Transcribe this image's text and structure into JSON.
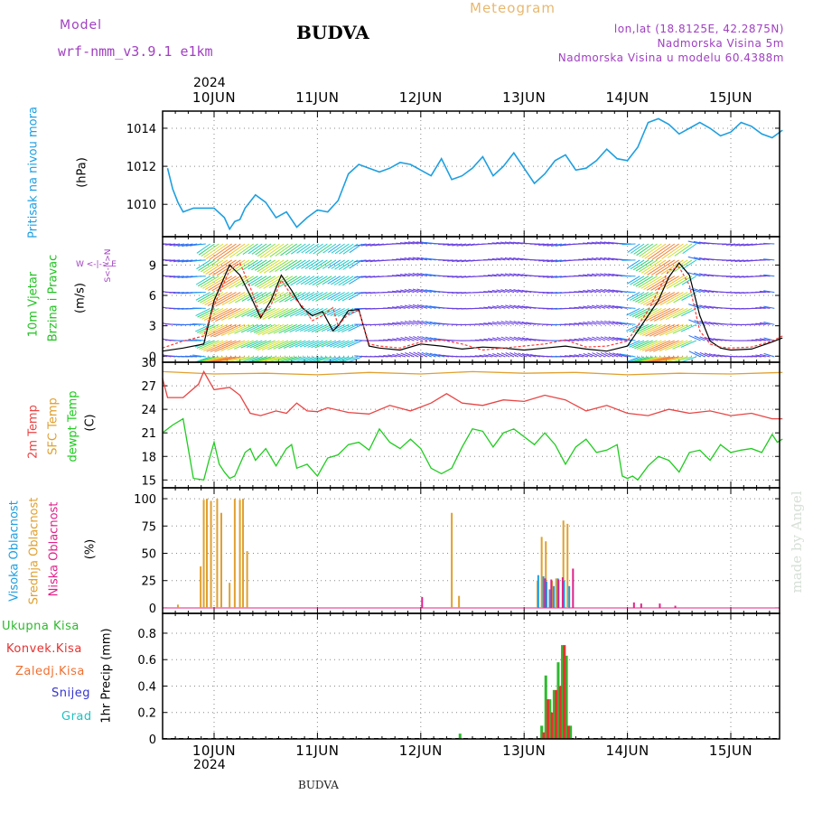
{
  "header": {
    "model_label": "Model",
    "model_name": "wrf-nmm_v3.9.1  e1km",
    "title": "BUDVA",
    "meteogram": "Meteogram",
    "lonlat": "lon,lat (18.8125E, 42.2875N)",
    "altitude": "Nadmorska Visina 5m",
    "model_altitude": "Nadmorska Visina u modelu 60.4388m",
    "year_top": "2024",
    "year_bottom": "2024",
    "footer": "BUDVA",
    "watermark": "made by Angel"
  },
  "colors": {
    "pressure": "#1e9fe0",
    "wind_title": "#1fc21f",
    "wind_gust": "#000000",
    "wind_speed": "#ff3b3b",
    "temp_2m": "#e84545",
    "temp_sfc": "#e0a030",
    "temp_dew": "#1fcc1f",
    "cloud_high": "#1e9fe0",
    "cloud_mid": "#e0a030",
    "cloud_low": "#e0218a",
    "precip_total": "#2fb82f",
    "precip_conv": "#e83030",
    "precip_frozen": "#f07030",
    "precip_snow": "#3535d0",
    "precip_grad": "#20c0c0",
    "header_purple": "#a040c0",
    "meteogram": "#e8b870"
  },
  "panels": {
    "pressure": {
      "label": "Pritisak na nivou mora",
      "unit": "(hPa)"
    },
    "wind": {
      "label1": "10m Vjetar",
      "label2": "Brzina i Pravac",
      "unit": "(m/s)",
      "compass": "W  <-|->  E",
      "compass2": "S<-|->N"
    },
    "temp": {
      "label1": "2m Temp",
      "label2": "SFC Temp",
      "label3": "dewpt Temp",
      "unit": "(C)"
    },
    "cloud": {
      "label1": "Visoka Oblacnost",
      "label2": "Srednja Oblacnost",
      "label3": "Niska Oblacnost",
      "unit": "(%)"
    },
    "precip": {
      "label_total": "Ukupna Kisa",
      "label_conv": "Konvek.Kisa",
      "label_frozen": "Zaledj.Kisa",
      "label_snow": "Snijeg",
      "label_grad": "Grad",
      "unit": "1hr Precip (mm)"
    }
  },
  "chart_data": [
    {
      "type": "line",
      "name": "pressure",
      "x_ticks": [
        "10JUN",
        "11JUN",
        "12JUN",
        "13JUN",
        "14JUN",
        "15JUN"
      ],
      "y_ticks": [
        1010,
        1012,
        1014
      ],
      "ylim": [
        1008.3,
        1014.9
      ],
      "grid": true,
      "series": [
        {
          "key": "pressure",
          "x": [
            -0.45,
            -0.4,
            -0.35,
            -0.3,
            -0.2,
            -0.1,
            0.0,
            0.1,
            0.15,
            0.2,
            0.25,
            0.3,
            0.4,
            0.5,
            0.6,
            0.7,
            0.8,
            0.9,
            1.0,
            1.1,
            1.2,
            1.3,
            1.4,
            1.5,
            1.6,
            1.7,
            1.8,
            1.9,
            2.0,
            2.1,
            2.2,
            2.3,
            2.4,
            2.5,
            2.6,
            2.7,
            2.8,
            2.9,
            3.0,
            3.1,
            3.2,
            3.3,
            3.4,
            3.5,
            3.6,
            3.7,
            3.8,
            3.9,
            4.0,
            4.1,
            4.2,
            4.3,
            4.4,
            4.5,
            4.6,
            4.7,
            4.8,
            4.9,
            5.0,
            5.1,
            5.2,
            5.3,
            5.4,
            5.5
          ],
          "values": [
            1011.9,
            1010.8,
            1010.1,
            1009.6,
            1009.8,
            1009.8,
            1009.8,
            1009.3,
            1008.7,
            1009.1,
            1009.2,
            1009.8,
            1010.5,
            1010.1,
            1009.3,
            1009.6,
            1008.8,
            1009.3,
            1009.7,
            1009.6,
            1010.2,
            1011.6,
            1012.1,
            1011.9,
            1011.7,
            1011.9,
            1012.2,
            1012.1,
            1011.8,
            1011.5,
            1012.4,
            1011.3,
            1011.5,
            1011.9,
            1012.5,
            1011.5,
            1012.0,
            1012.7,
            1011.9,
            1011.1,
            1011.6,
            1012.3,
            1012.6,
            1011.8,
            1011.9,
            1012.3,
            1012.9,
            1012.4,
            1012.3,
            1013.0,
            1014.3,
            1014.5,
            1014.2,
            1013.7,
            1014.0,
            1014.3,
            1014.0,
            1013.6,
            1013.8,
            1014.3,
            1014.1,
            1013.7,
            1013.5,
            1013.9
          ]
        }
      ]
    },
    {
      "type": "line",
      "name": "wind",
      "x_ticks": [
        "10JUN",
        "11JUN",
        "12JUN",
        "13JUN",
        "14JUN",
        "15JUN"
      ],
      "y_ticks": [
        0,
        3,
        6,
        9
      ],
      "ylim": [
        -0.6,
        11.8
      ],
      "grid": true,
      "series": [
        {
          "key": "wind_gust",
          "x": [
            -0.5,
            -0.3,
            -0.1,
            0.0,
            0.15,
            0.25,
            0.35,
            0.45,
            0.55,
            0.65,
            0.75,
            0.85,
            0.95,
            1.05,
            1.15,
            1.2,
            1.3,
            1.4,
            1.5,
            1.6,
            1.8,
            2.0,
            2.2,
            2.4,
            2.6,
            2.8,
            3.0,
            3.2,
            3.4,
            3.6,
            3.8,
            4.0,
            4.1,
            4.2,
            4.3,
            4.4,
            4.5,
            4.6,
            4.7,
            4.8,
            4.9,
            5.0,
            5.2,
            5.4,
            5.5
          ],
          "values": [
            0.5,
            0.8,
            1.2,
            5.5,
            9.0,
            8.0,
            6.0,
            3.8,
            5.5,
            8.0,
            6.5,
            4.8,
            4.0,
            4.4,
            2.5,
            3.0,
            4.5,
            4.6,
            1.0,
            0.8,
            0.6,
            1.2,
            1.0,
            0.7,
            0.9,
            0.8,
            0.6,
            0.8,
            1.0,
            0.7,
            0.5,
            1.0,
            2.5,
            4.0,
            5.5,
            7.8,
            9.2,
            8.0,
            4.0,
            1.5,
            0.8,
            0.6,
            0.7,
            1.4,
            1.8
          ]
        },
        {
          "key": "wind_speed",
          "x": [
            -0.5,
            -0.3,
            -0.1,
            0.0,
            0.15,
            0.25,
            0.35,
            0.45,
            0.55,
            0.65,
            0.75,
            0.85,
            0.95,
            1.05,
            1.15,
            1.2,
            1.3,
            1.4,
            1.5,
            1.6,
            1.8,
            2.0,
            2.2,
            2.4,
            2.6,
            2.8,
            3.0,
            3.2,
            3.4,
            3.6,
            3.8,
            4.0,
            4.1,
            4.2,
            4.3,
            4.4,
            4.5,
            4.6,
            4.7,
            4.8,
            4.9,
            5.0,
            5.2,
            5.4,
            5.5
          ],
          "values": [
            0.8,
            1.5,
            2.0,
            5.0,
            8.5,
            9.2,
            6.8,
            4.0,
            5.0,
            7.5,
            6.0,
            5.0,
            3.5,
            4.0,
            4.8,
            3.0,
            4.2,
            4.5,
            1.2,
            1.0,
            0.8,
            1.4,
            1.6,
            1.2,
            0.6,
            0.8,
            1.0,
            1.2,
            1.6,
            0.9,
            1.0,
            1.5,
            3.0,
            4.5,
            6.5,
            8.5,
            8.8,
            7.0,
            2.5,
            1.2,
            0.9,
            0.8,
            0.9,
            1.5,
            2.0
          ]
        }
      ]
    },
    {
      "type": "line",
      "name": "temperature",
      "x_ticks": [
        "10JUN",
        "11JUN",
        "12JUN",
        "13JUN",
        "14JUN",
        "15JUN"
      ],
      "y_ticks": [
        15,
        18,
        21,
        24,
        27,
        30
      ],
      "ylim": [
        14.0,
        30.0
      ],
      "grid": true,
      "series": [
        {
          "key": "temp_sfc",
          "x": [
            -0.5,
            0.0,
            0.5,
            1.0,
            1.5,
            2.0,
            2.5,
            3.0,
            3.5,
            4.0,
            4.5,
            5.0,
            5.5
          ],
          "values": [
            28.8,
            28.5,
            28.6,
            28.4,
            28.7,
            28.5,
            28.8,
            28.6,
            28.7,
            28.4,
            28.6,
            28.5,
            28.7
          ]
        },
        {
          "key": "temp_2m",
          "x": [
            -0.5,
            -0.45,
            -0.3,
            -0.15,
            -0.1,
            0.0,
            0.15,
            0.25,
            0.35,
            0.45,
            0.6,
            0.7,
            0.8,
            0.9,
            1.0,
            1.1,
            1.3,
            1.5,
            1.7,
            1.9,
            2.1,
            2.25,
            2.4,
            2.6,
            2.8,
            3.0,
            3.2,
            3.4,
            3.6,
            3.8,
            4.0,
            4.2,
            4.4,
            4.6,
            4.8,
            5.0,
            5.2,
            5.4,
            5.5
          ],
          "values": [
            28.0,
            25.5,
            25.5,
            27.2,
            28.8,
            26.5,
            26.8,
            25.8,
            23.5,
            23.2,
            23.8,
            23.5,
            24.8,
            23.8,
            23.7,
            24.2,
            23.6,
            23.4,
            24.5,
            23.8,
            24.8,
            26.0,
            24.8,
            24.5,
            25.2,
            25.0,
            25.8,
            25.2,
            23.8,
            24.5,
            23.5,
            23.2,
            24.0,
            23.5,
            23.8,
            23.2,
            23.5,
            22.8,
            22.8
          ]
        },
        {
          "key": "temp_dew",
          "x": [
            -0.5,
            -0.4,
            -0.3,
            -0.2,
            -0.1,
            -0.05,
            0.0,
            0.05,
            0.1,
            0.15,
            0.2,
            0.3,
            0.35,
            0.4,
            0.5,
            0.6,
            0.7,
            0.75,
            0.8,
            0.9,
            1.0,
            1.1,
            1.2,
            1.3,
            1.4,
            1.5,
            1.6,
            1.7,
            1.8,
            1.9,
            2.0,
            2.1,
            2.2,
            2.3,
            2.4,
            2.5,
            2.6,
            2.7,
            2.8,
            2.9,
            3.0,
            3.1,
            3.2,
            3.3,
            3.4,
            3.5,
            3.6,
            3.7,
            3.8,
            3.9,
            3.95,
            4.0,
            4.05,
            4.1,
            4.2,
            4.3,
            4.4,
            4.5,
            4.6,
            4.7,
            4.8,
            4.9,
            5.0,
            5.1,
            5.2,
            5.3,
            5.4,
            5.45,
            5.5
          ],
          "values": [
            21.0,
            22.0,
            22.8,
            15.2,
            15.0,
            17.5,
            19.8,
            17.0,
            16.0,
            15.2,
            15.5,
            18.5,
            19.0,
            17.5,
            19.0,
            16.8,
            19.0,
            19.5,
            16.5,
            17.0,
            15.5,
            17.8,
            18.2,
            19.5,
            19.8,
            18.8,
            21.5,
            19.8,
            19.0,
            20.2,
            19.0,
            16.5,
            15.8,
            16.5,
            19.2,
            21.5,
            21.2,
            19.2,
            21.0,
            21.5,
            20.5,
            19.5,
            21.0,
            19.5,
            17.0,
            19.2,
            20.2,
            18.5,
            18.8,
            19.5,
            15.5,
            15.2,
            15.5,
            15.0,
            16.8,
            18.0,
            17.5,
            16.0,
            18.5,
            18.8,
            17.5,
            19.5,
            18.5,
            18.8,
            19.0,
            18.5,
            20.8,
            19.8,
            20.2
          ]
        }
      ]
    },
    {
      "type": "bar",
      "name": "cloud",
      "x_ticks": [
        "10JUN",
        "11JUN",
        "12JUN",
        "13JUN",
        "14JUN",
        "15JUN"
      ],
      "y_ticks": [
        0,
        25,
        50,
        75,
        100
      ],
      "ylim": [
        -5,
        110
      ],
      "grid": true,
      "series": [
        {
          "key": "cloud_mid",
          "x": [
            -0.35,
            -0.13,
            -0.1,
            -0.07,
            -0.03,
            0.03,
            0.07,
            0.15,
            0.2,
            0.25,
            0.28,
            0.32,
            2.3,
            2.37,
            3.13,
            3.17,
            3.21,
            3.27,
            3.31,
            3.38,
            3.42
          ],
          "values": [
            3,
            38,
            99,
            100,
            98,
            100,
            87,
            23,
            100,
            99,
            100,
            52,
            87,
            11,
            25,
            65,
            61,
            25,
            27,
            80,
            77
          ]
        },
        {
          "key": "cloud_high",
          "x": [
            3.15,
            3.2,
            3.23,
            3.26,
            3.3,
            3.34,
            3.4,
            3.45
          ],
          "values": [
            30,
            29,
            24,
            17,
            20,
            27,
            25,
            20
          ]
        },
        {
          "key": "cloud_low",
          "x": [
            2.0,
            3.19,
            3.25,
            3.32,
            3.36,
            3.46,
            4.05,
            4.12,
            4.3,
            4.45
          ],
          "values": [
            10,
            27,
            26,
            26,
            28,
            36,
            5,
            4,
            4,
            2
          ]
        }
      ]
    },
    {
      "type": "bar",
      "name": "precipitation",
      "x_ticks": [
        "10JUN",
        "11JUN",
        "12JUN",
        "13JUN",
        "14JUN",
        "15JUN"
      ],
      "y_ticks": [
        0,
        0.2,
        0.4,
        0.6,
        0.8
      ],
      "ylim": [
        0,
        0.95
      ],
      "grid": true,
      "series": [
        {
          "key": "precip_total",
          "x": [
            2.38,
            3.17,
            3.21,
            3.25,
            3.29,
            3.33,
            3.37,
            3.41,
            3.45
          ],
          "values": [
            0.04,
            0.1,
            0.48,
            0.3,
            0.37,
            0.58,
            0.71,
            0.63,
            0.1
          ]
        },
        {
          "key": "precip_conv",
          "x": [
            3.19,
            3.23,
            3.27,
            3.31,
            3.35,
            3.39,
            3.43
          ],
          "values": [
            0.05,
            0.3,
            0.2,
            0.37,
            0.4,
            0.71,
            0.1
          ]
        }
      ]
    }
  ]
}
